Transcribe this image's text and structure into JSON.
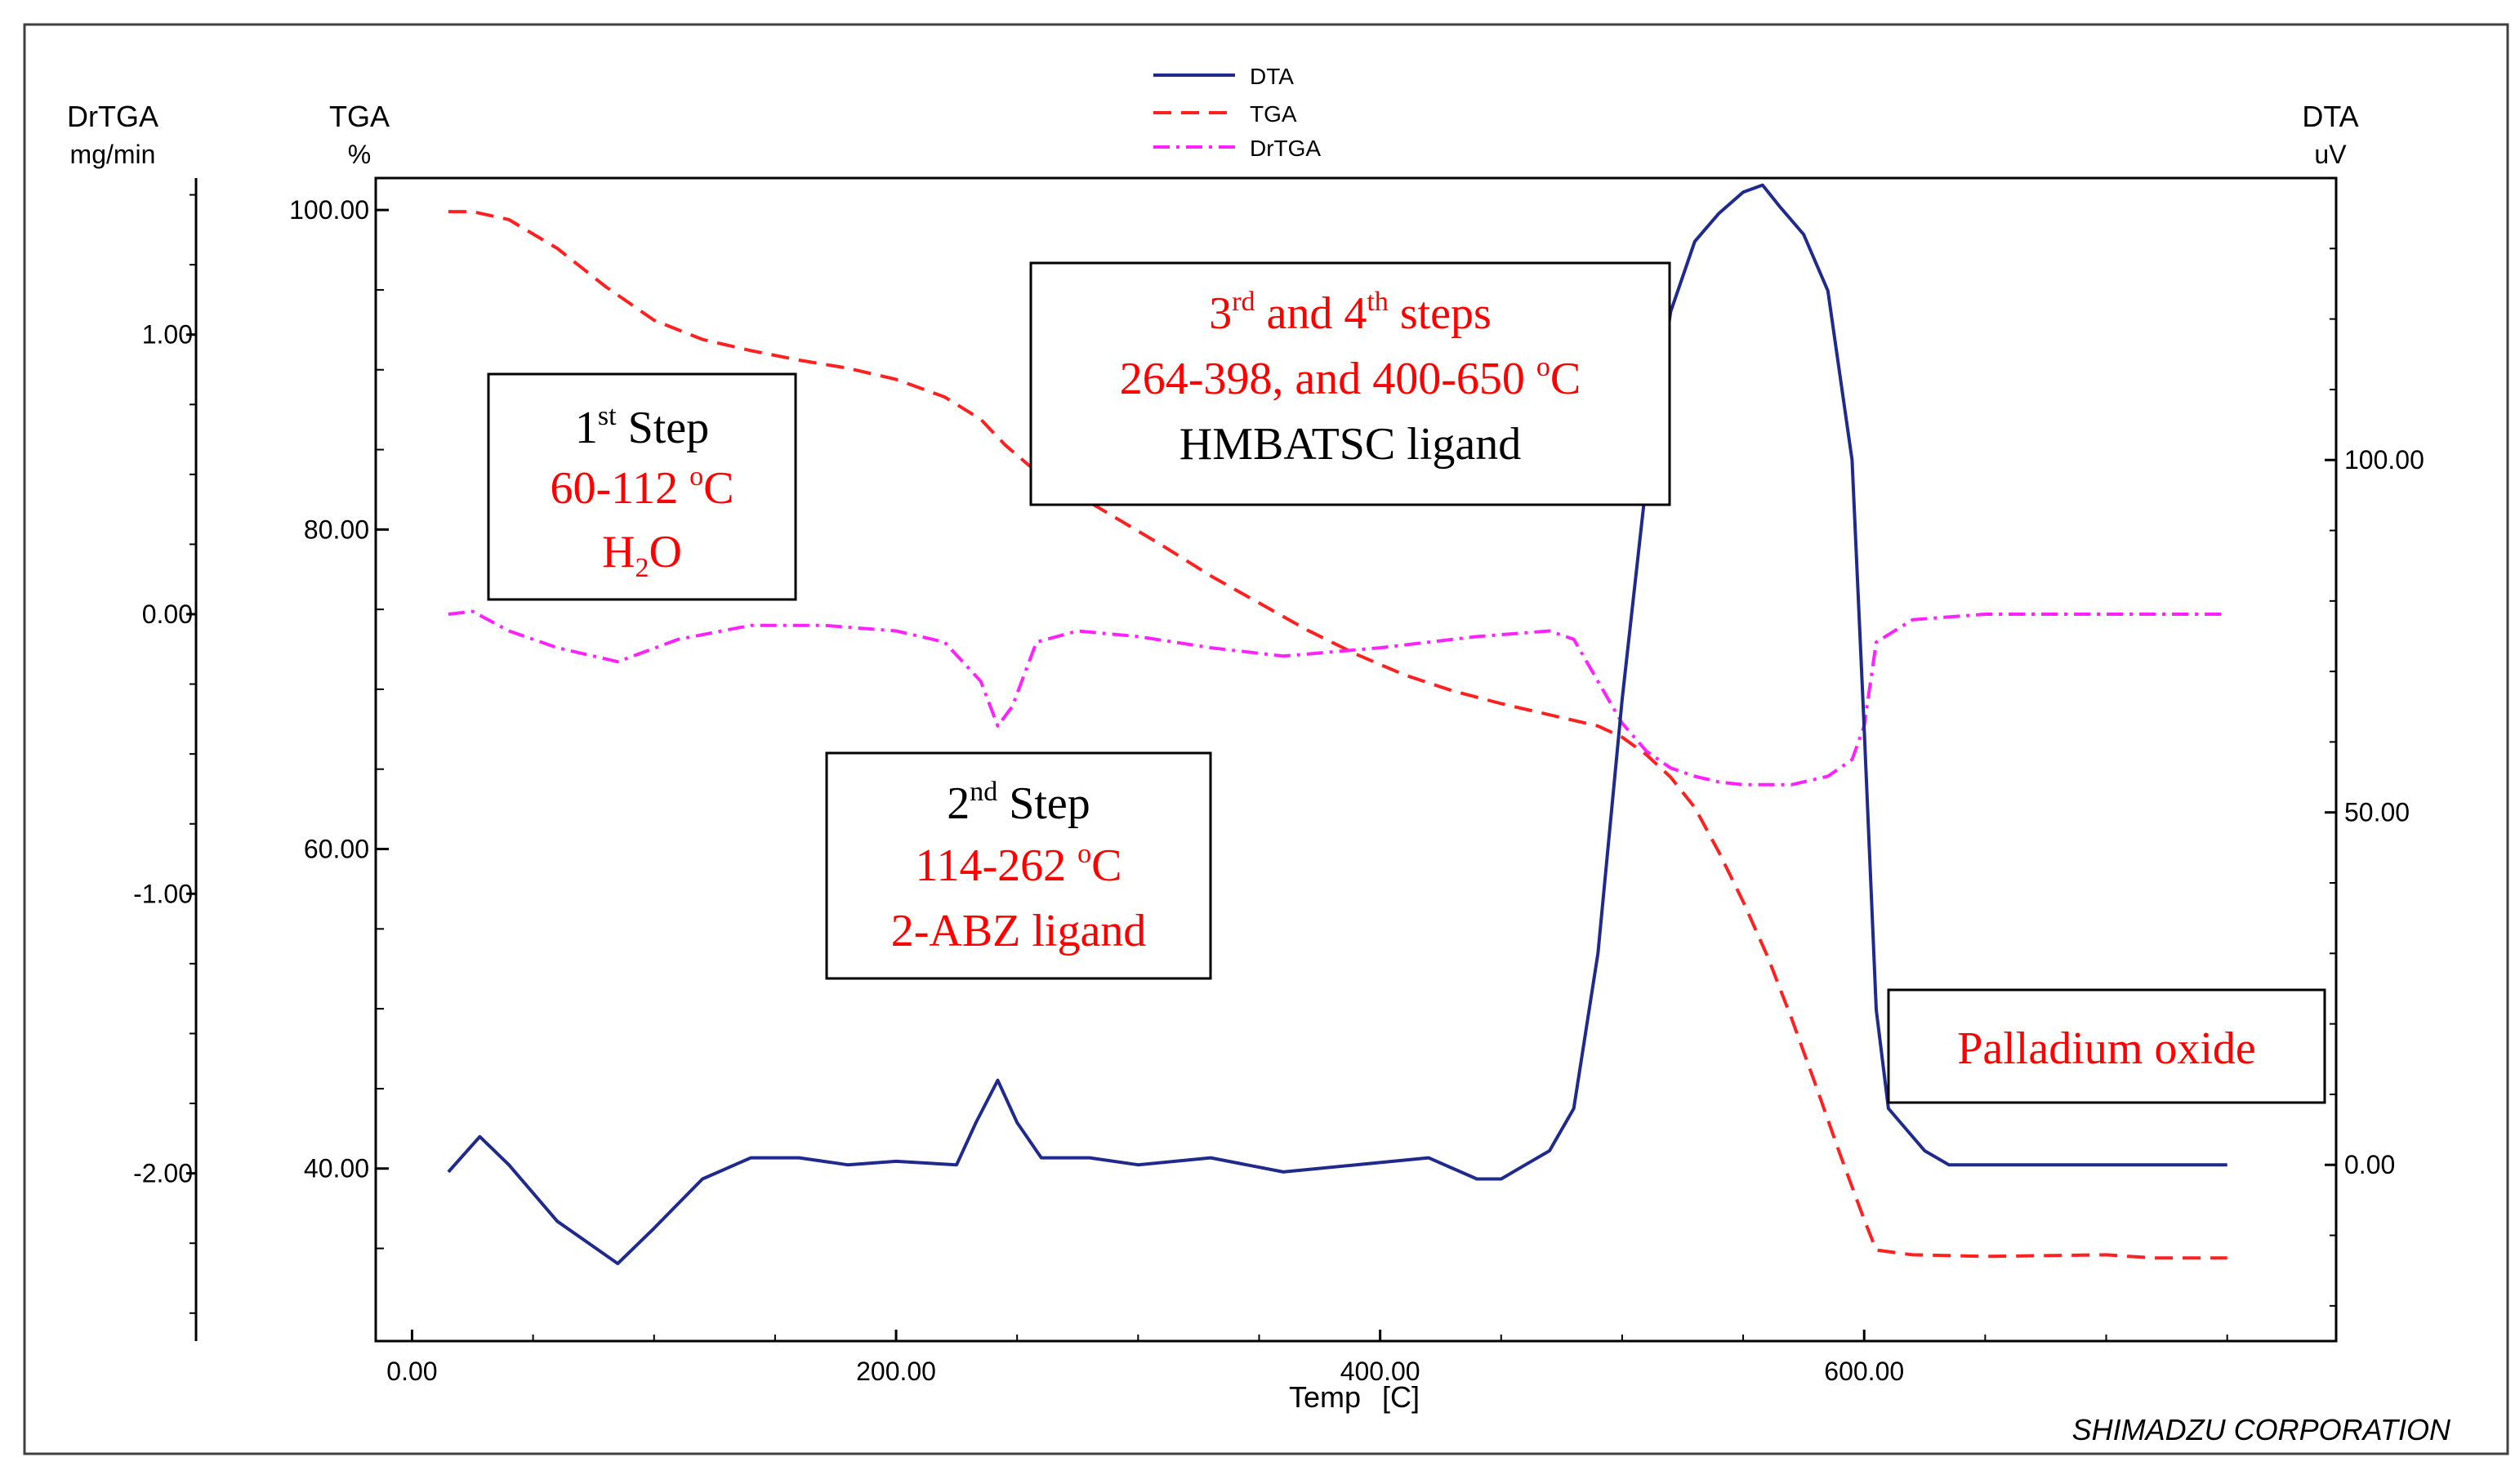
{
  "colors": {
    "dta": "#1f2a8c",
    "tga": "#ff2020",
    "drtga": "#ff22ff",
    "annot_red": "#ff0000",
    "annot_black": "#000000"
  },
  "legend": [
    {
      "name": "DTA",
      "style": "solid"
    },
    {
      "name": "TGA",
      "style": "dashed"
    },
    {
      "name": "DrTGA",
      "style": "dashdot"
    }
  ],
  "axes": {
    "drtga": {
      "title": "DrTGA",
      "unit": "mg/min",
      "ticks": [
        "1.00",
        "0.00",
        "-1.00",
        "-2.00"
      ]
    },
    "tga": {
      "title": "TGA",
      "unit": "%",
      "ticks": [
        "100.00",
        "80.00",
        "60.00",
        "40.00"
      ]
    },
    "dta": {
      "title": "DTA",
      "unit": "uV",
      "ticks": [
        "100.00",
        "50.00",
        "0.00"
      ]
    },
    "x": {
      "title": "Temp",
      "unit": "[C]",
      "ticks": [
        "0.00",
        "200.00",
        "400.00",
        "600.00"
      ]
    }
  },
  "annotations": [
    {
      "id": "step1",
      "lines": [
        {
          "text": "1",
          "sup": "st",
          "after": " Step",
          "color": "black"
        },
        {
          "text": "60-112 ",
          "sup": "o",
          "after": "C",
          "color": "red"
        },
        {
          "text": "H",
          "sub": "2",
          "after": "O",
          "color": "red"
        }
      ]
    },
    {
      "id": "step2",
      "lines": [
        {
          "text": "2",
          "sup": "nd",
          "after": " Step",
          "color": "black"
        },
        {
          "text": "114-262 ",
          "sup": "o",
          "after": "C",
          "color": "red"
        },
        {
          "text": "2-ABZ ligand",
          "color": "red"
        }
      ]
    },
    {
      "id": "step34",
      "lines": [
        {
          "text": "3",
          "sup": "rd",
          "after": " and 4",
          "sup2": "th",
          "after2": " steps",
          "color": "red"
        },
        {
          "text": "264-398, and 400-650 ",
          "sup": "o",
          "after": "C",
          "color": "red"
        },
        {
          "text": "HMBATSC ligand",
          "color": "black"
        }
      ]
    },
    {
      "id": "residue",
      "lines": [
        {
          "text": "Palladium oxide",
          "color": "red"
        }
      ]
    }
  ],
  "footer": "SHIMADZU CORPORATION",
  "chart_data": {
    "type": "line",
    "title": "",
    "xlabel": "Temp [C]",
    "xlim": [
      -15,
      795
    ],
    "y_axes": {
      "tga": {
        "label": "TGA %",
        "ylim": [
          29.2,
          102.0
        ]
      },
      "drtga": {
        "label": "DrTGA mg/min",
        "ylim": [
          -2.6,
          1.56
        ]
      },
      "dta": {
        "label": "DTA uV",
        "ylim": [
          -25,
          140
        ]
      }
    },
    "series": [
      {
        "name": "TGA",
        "axis": "tga",
        "x": [
          15,
          25,
          40,
          60,
          80,
          100,
          120,
          140,
          160,
          180,
          200,
          220,
          235,
          245,
          255,
          270,
          290,
          310,
          330,
          350,
          370,
          390,
          410,
          430,
          450,
          470,
          490,
          500,
          510,
          520,
          530,
          540,
          550,
          560,
          570,
          580,
          590,
          600,
          605,
          620,
          650,
          700,
          720,
          740,
          750
        ],
        "values": [
          99.9,
          99.9,
          99.4,
          97.6,
          95.2,
          93.1,
          91.9,
          91.2,
          90.6,
          90.1,
          89.4,
          88.3,
          86.9,
          85.3,
          84.0,
          82.6,
          80.8,
          79.0,
          77.1,
          75.4,
          73.7,
          72.2,
          70.9,
          69.9,
          69.1,
          68.4,
          67.7,
          67.0,
          65.9,
          64.5,
          62.6,
          59.8,
          56.7,
          53.3,
          49.4,
          45.2,
          40.9,
          36.8,
          34.9,
          34.6,
          34.5,
          34.6,
          34.4,
          34.4,
          34.4
        ]
      },
      {
        "name": "DrTGA",
        "axis": "drtga",
        "x": [
          15,
          25,
          40,
          60,
          85,
          110,
          140,
          170,
          200,
          220,
          235,
          242,
          248,
          258,
          275,
          300,
          330,
          360,
          400,
          440,
          470,
          480,
          490,
          500,
          510,
          520,
          530,
          540,
          550,
          570,
          585,
          595,
          600,
          605,
          620,
          650,
          700,
          750
        ],
        "values": [
          0.0,
          0.01,
          -0.06,
          -0.12,
          -0.17,
          -0.09,
          -0.04,
          -0.04,
          -0.06,
          -0.1,
          -0.24,
          -0.4,
          -0.33,
          -0.1,
          -0.06,
          -0.08,
          -0.12,
          -0.15,
          -0.12,
          -0.08,
          -0.06,
          -0.09,
          -0.24,
          -0.39,
          -0.49,
          -0.55,
          -0.58,
          -0.6,
          -0.61,
          -0.61,
          -0.58,
          -0.52,
          -0.4,
          -0.1,
          -0.02,
          0.0,
          0.0,
          0.0
        ]
      },
      {
        "name": "DTA",
        "axis": "dta",
        "x": [
          15,
          28,
          40,
          60,
          85,
          100,
          120,
          140,
          160,
          180,
          200,
          225,
          233,
          242,
          250,
          260,
          280,
          300,
          330,
          360,
          390,
          420,
          440,
          450,
          460,
          470,
          480,
          490,
          500,
          510,
          520,
          530,
          540,
          550,
          558,
          565,
          575,
          585,
          595,
          600,
          605,
          610,
          615,
          625,
          635,
          650,
          700,
          750
        ],
        "values": [
          -1.0,
          4.0,
          0.0,
          -8.0,
          -14.0,
          -9.0,
          -2.0,
          1.0,
          1.0,
          0.0,
          0.5,
          0.0,
          6.0,
          12.0,
          6.0,
          1.0,
          1.0,
          0.0,
          1.0,
          -1.0,
          0.0,
          1.0,
          -2.0,
          -2.0,
          0.0,
          2.0,
          8.0,
          30.0,
          66.0,
          97.0,
          121.0,
          131.0,
          135.0,
          138.0,
          139.0,
          136.0,
          132.0,
          124.0,
          100.0,
          62.0,
          22.0,
          8.0,
          6.0,
          2.0,
          0.0,
          0.0,
          0.0,
          0.0
        ]
      }
    ]
  }
}
